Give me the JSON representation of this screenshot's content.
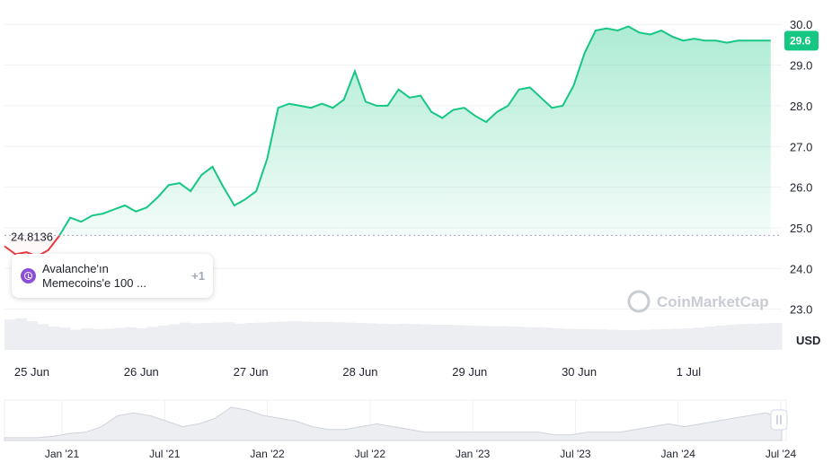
{
  "chart_data": {
    "type": "line",
    "currency": "USD",
    "reference_price_label": "24.8136",
    "reference_price": 24.8136,
    "current_price_label": "29.6",
    "current_price": 29.6,
    "ylim": [
      22.0,
      30.6
    ],
    "y_ticks": [
      "30.0",
      "29.0",
      "28.0",
      "27.0",
      "26.0",
      "25.0",
      "24.0",
      "23.0"
    ],
    "y_tick_values": [
      30,
      29,
      28,
      27,
      26,
      25,
      24,
      23
    ],
    "x_range": [
      0,
      7.1
    ],
    "x_ticks": [
      "25 Jun",
      "26 Jun",
      "27 Jun",
      "28 Jun",
      "29 Jun",
      "30 Jun",
      "1 Jul"
    ],
    "x_tick_positions": [
      0.25,
      1.25,
      2.25,
      3.25,
      4.25,
      5.25,
      6.25
    ],
    "series": [
      {
        "x": [
          0,
          0.1,
          0.2,
          0.3,
          0.4,
          0.5,
          0.6,
          0.7,
          0.8,
          0.9,
          1.0,
          1.1,
          1.2,
          1.3,
          1.4,
          1.5,
          1.6,
          1.7,
          1.8,
          1.9,
          2.0,
          2.1,
          2.2,
          2.3,
          2.4,
          2.5,
          2.6,
          2.7,
          2.8,
          2.9,
          3.0,
          3.1,
          3.2,
          3.3,
          3.4,
          3.5,
          3.6,
          3.7,
          3.8,
          3.9,
          4.0,
          4.1,
          4.2,
          4.3,
          4.4,
          4.5,
          4.6,
          4.7,
          4.8,
          4.9,
          5.0,
          5.1,
          5.2,
          5.3,
          5.4,
          5.5,
          5.6,
          5.7,
          5.8,
          5.9,
          6.0,
          6.1,
          6.2,
          6.3,
          6.4,
          6.5,
          6.6,
          6.7,
          6.8,
          6.9,
          7.0
        ],
        "values": [
          24.55,
          24.35,
          24.4,
          24.3,
          24.45,
          24.8,
          25.25,
          25.15,
          25.3,
          25.35,
          25.45,
          25.55,
          25.4,
          25.5,
          25.75,
          26.05,
          26.1,
          25.9,
          26.3,
          26.5,
          26.0,
          25.55,
          25.7,
          25.9,
          26.7,
          27.95,
          28.05,
          28.0,
          27.95,
          28.05,
          27.95,
          28.15,
          28.85,
          28.1,
          28.0,
          28.0,
          28.4,
          28.2,
          28.25,
          27.85,
          27.7,
          27.9,
          27.95,
          27.75,
          27.6,
          27.85,
          28.0,
          28.4,
          28.45,
          28.2,
          27.95,
          28.0,
          28.5,
          29.3,
          29.85,
          29.9,
          29.85,
          29.95,
          29.8,
          29.75,
          29.85,
          29.7,
          29.6,
          29.65,
          29.6,
          29.6,
          29.55,
          29.6,
          29.6,
          29.6,
          29.6
        ]
      }
    ],
    "volume": [
      8.5,
      8.8,
      8.0,
      7.2,
      6.5,
      6.2,
      5.6,
      6.0,
      5.8,
      5.9,
      6.1,
      6.3,
      6.0,
      6.4,
      6.8,
      7.1,
      7.6,
      7.4,
      7.5,
      7.6,
      7.7,
      7.3,
      7.5,
      7.6,
      7.8,
      7.9,
      8.0,
      7.9,
      7.8,
      7.8,
      7.7,
      7.6,
      7.5,
      7.4,
      7.3,
      7.2,
      7.3,
      7.2,
      7.1,
      7.0,
      7.0,
      6.9,
      6.8,
      6.7,
      6.6,
      6.6,
      6.5,
      6.4,
      6.3,
      6.2,
      6.0,
      5.9,
      5.8,
      5.8,
      5.7,
      5.6,
      5.5,
      5.5,
      5.6,
      5.7,
      5.8,
      5.9,
      6.0,
      6.2,
      6.5,
      6.8,
      7.0,
      7.2,
      7.3,
      7.4,
      7.5
    ]
  },
  "navigator": {
    "labels": [
      "Jan '21",
      "Jul '21",
      "Jan '22",
      "Jul '22",
      "Jan '23",
      "Jul '23",
      "Jan '24",
      "Jul '24"
    ],
    "values": [
      1,
      1,
      1,
      1.5,
      2.5,
      3,
      5,
      9,
      10,
      9,
      7,
      5,
      6,
      8,
      12,
      11,
      9,
      8,
      7,
      5,
      4,
      4,
      5,
      6,
      5,
      4,
      3,
      3,
      3,
      3,
      3,
      3,
      3,
      3,
      2,
      2,
      3,
      3,
      3,
      4,
      5,
      6,
      5,
      6,
      7,
      8,
      9,
      10,
      8
    ]
  },
  "news": {
    "text": "Avalanche'ın\nMemecoins'e 100 ...",
    "more": "+1"
  },
  "watermark": "CoinMarketCap",
  "colors": {
    "line": "#16c784",
    "down": "#ea3943",
    "badge": "#16c784",
    "grid": "#eff2f5"
  }
}
